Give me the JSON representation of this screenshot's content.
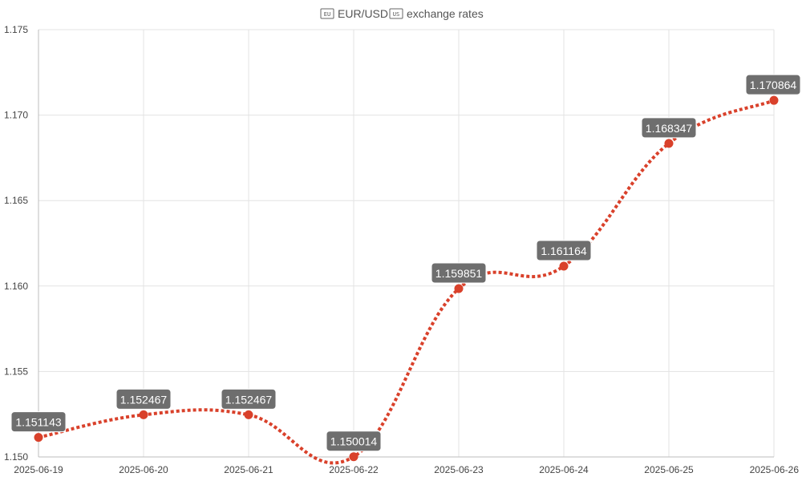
{
  "header": {
    "base_flag": "EU",
    "base_currency": "EUR/USD",
    "quote_flag": "US",
    "title_rest": "exchange rates"
  },
  "chart_data": {
    "type": "line",
    "title": "EUR/USD exchange rates",
    "x": [
      "2025-06-19",
      "2025-06-20",
      "2025-06-21",
      "2025-06-22",
      "2025-06-23",
      "2025-06-24",
      "2025-06-25",
      "2025-06-26"
    ],
    "values": [
      1.151143,
      1.152467,
      1.152467,
      1.150014,
      1.159851,
      1.161164,
      1.168347,
      1.170864
    ],
    "data_labels": [
      "1.151143",
      "1.152467",
      "1.152467",
      "1.150014",
      "1.159851",
      "1.161164",
      "1.168347",
      "1.170864"
    ],
    "y_ticks": [
      "1.150",
      "1.155",
      "1.160",
      "1.165",
      "1.170",
      "1.175"
    ],
    "ylim": [
      1.15,
      1.175
    ],
    "grid": true,
    "legend": "none",
    "line_style": "dotted",
    "curve": "smooth",
    "color": "#d9412b"
  }
}
